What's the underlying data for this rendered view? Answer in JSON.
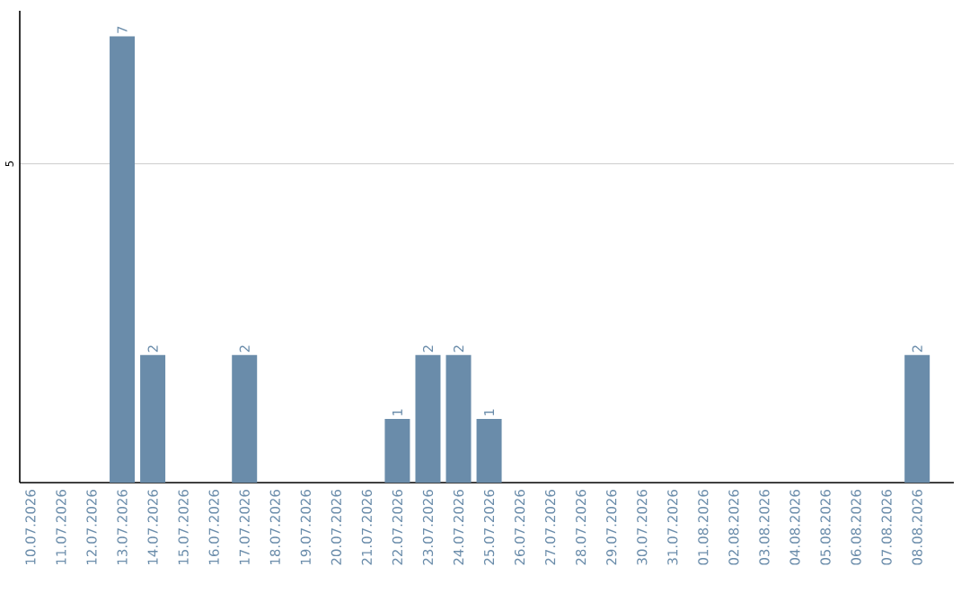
{
  "chart_data": {
    "type": "bar",
    "categories": [
      "10.07.2026",
      "11.07.2026",
      "12.07.2026",
      "13.07.2026",
      "14.07.2026",
      "15.07.2026",
      "16.07.2026",
      "17.07.2026",
      "18.07.2026",
      "19.07.2026",
      "20.07.2026",
      "21.07.2026",
      "22.07.2026",
      "23.07.2026",
      "24.07.2026",
      "25.07.2026",
      "26.07.2026",
      "27.07.2026",
      "28.07.2026",
      "29.07.2026",
      "30.07.2026",
      "31.07.2026",
      "01.08.2026",
      "02.08.2026",
      "03.08.2026",
      "04.08.2026",
      "05.08.2026",
      "06.08.2026",
      "07.08.2026",
      "08.08.2026"
    ],
    "values": [
      0,
      0,
      0,
      7,
      2,
      0,
      0,
      2,
      0,
      0,
      0,
      0,
      1,
      2,
      2,
      1,
      0,
      0,
      0,
      0,
      0,
      0,
      0,
      0,
      0,
      0,
      0,
      0,
      0,
      2
    ],
    "value_labels": [
      null,
      null,
      null,
      "7",
      "2",
      null,
      null,
      "2",
      null,
      null,
      null,
      null,
      "1",
      "2",
      "2",
      "1",
      null,
      null,
      null,
      null,
      null,
      null,
      null,
      null,
      null,
      null,
      null,
      null,
      null,
      "2"
    ],
    "color": "#6a8caa",
    "ylim": [
      0,
      7.4
    ],
    "yticks": [
      5
    ],
    "grid": "y"
  }
}
